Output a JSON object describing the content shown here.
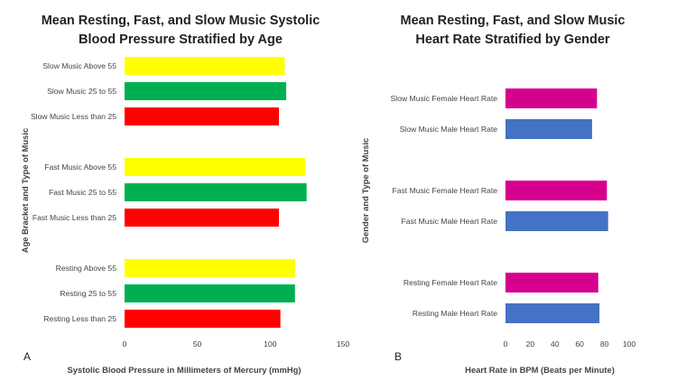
{
  "chart_data": [
    {
      "type": "bar",
      "orientation": "horizontal",
      "panel_label": "A",
      "title_lines": [
        "Mean Resting, Fast, and Slow Music Systolic",
        "Blood Pressure Stratified by Age"
      ],
      "xlabel": "Systolic Blood Pressure in Millimeters of Mercury (mmHg)",
      "ylabel": "Age Bracket and Type of Music",
      "xlim": [
        0,
        150
      ],
      "xticks": [
        "0",
        "50",
        "100",
        "150"
      ],
      "categories": [
        "Slow Music Above 55",
        "Slow Music 25 to 55",
        "Slow Music Less than 25",
        "Fast Music Above 55",
        "Fast Music 25 to 55",
        "Fast Music Less than 25",
        "Resting Above 55",
        "Resting 25 to 55",
        "Resting Less than 25"
      ],
      "values": [
        110,
        111,
        106,
        124,
        125,
        106,
        117,
        117,
        107
      ],
      "colors": [
        "#ffff00",
        "#00b050",
        "#ff0000",
        "#ffff00",
        "#00b050",
        "#ff0000",
        "#ffff00",
        "#00b050",
        "#ff0000"
      ],
      "groups": [
        3,
        3,
        3
      ],
      "grid": false,
      "legend": "none"
    },
    {
      "type": "bar",
      "orientation": "horizontal",
      "panel_label": "B",
      "title_lines": [
        "Mean Resting, Fast, and Slow Music",
        "Heart Rate Stratified by Gender"
      ],
      "xlabel": "Heart Rate in BPM (Beats per Minute)",
      "ylabel": "Gender and Type of Music",
      "xlim": [
        0,
        100
      ],
      "xticks": [
        "0",
        "20",
        "40",
        "60",
        "80",
        "100"
      ],
      "categories": [
        "Slow Music Female Heart Rate",
        "Slow Music Male Heart Rate",
        "Fast Music Female Heart Rate",
        "Fast Music Male Heart Rate",
        "Resting Female Heart Rate",
        "Resting Male Heart Rate"
      ],
      "values": [
        74,
        70,
        82,
        83,
        75,
        76
      ],
      "colors": [
        "#d6008f",
        "#4472c4",
        "#d6008f",
        "#4472c4",
        "#d6008f",
        "#4472c4"
      ],
      "groups": [
        2,
        2,
        2
      ],
      "grid": false,
      "legend": "none"
    }
  ]
}
